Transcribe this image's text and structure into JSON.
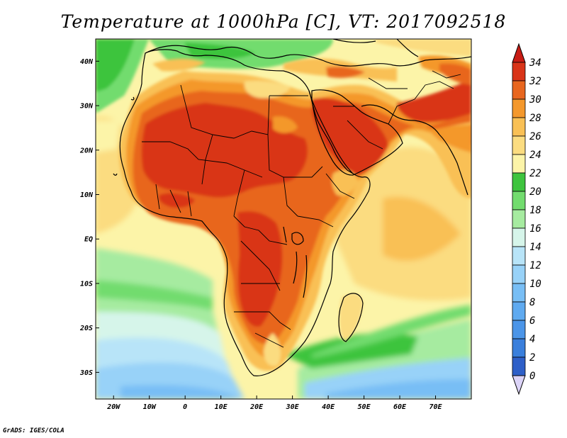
{
  "title": "Temperature at 1000hPa [C], VT: 2017092518",
  "credit": "GrADS: IGES/COLA",
  "map": {
    "lon_range": [
      -25,
      80
    ],
    "lat_range": [
      -36,
      45
    ],
    "lat_ticks": [
      {
        "value": 40,
        "label": "40N"
      },
      {
        "value": 30,
        "label": "30N"
      },
      {
        "value": 20,
        "label": "20N"
      },
      {
        "value": 10,
        "label": "10N"
      },
      {
        "value": 0,
        "label": "EQ"
      },
      {
        "value": -10,
        "label": "10S"
      },
      {
        "value": -20,
        "label": "20S"
      },
      {
        "value": -30,
        "label": "30S"
      }
    ],
    "lon_ticks": [
      {
        "value": -20,
        "label": "20W"
      },
      {
        "value": -10,
        "label": "10W"
      },
      {
        "value": 0,
        "label": "0"
      },
      {
        "value": 10,
        "label": "10E"
      },
      {
        "value": 20,
        "label": "20E"
      },
      {
        "value": 30,
        "label": "30E"
      },
      {
        "value": 40,
        "label": "40E"
      },
      {
        "value": 50,
        "label": "50E"
      },
      {
        "value": 60,
        "label": "60E"
      },
      {
        "value": 70,
        "label": "70E"
      }
    ]
  },
  "colorbar": {
    "labels": [
      "0",
      "2",
      "4",
      "6",
      "8",
      "10",
      "12",
      "14",
      "16",
      "18",
      "20",
      "22",
      "24",
      "26",
      "28",
      "30",
      "32",
      "34"
    ],
    "colors": [
      "#2a3fa8",
      "#2e5fc8",
      "#3a7fdc",
      "#4b95e8",
      "#5faaf0",
      "#78bef5",
      "#98d2f8",
      "#b8e4f8",
      "#d6f5ea",
      "#a6eba0",
      "#72dc6e",
      "#3ec43e",
      "#fcf4a8",
      "#fbdc80",
      "#f9c055",
      "#f4982c",
      "#e8661e",
      "#d93418"
    ],
    "under_color": "#dcd4f8",
    "over_color": "#c81c14"
  }
}
